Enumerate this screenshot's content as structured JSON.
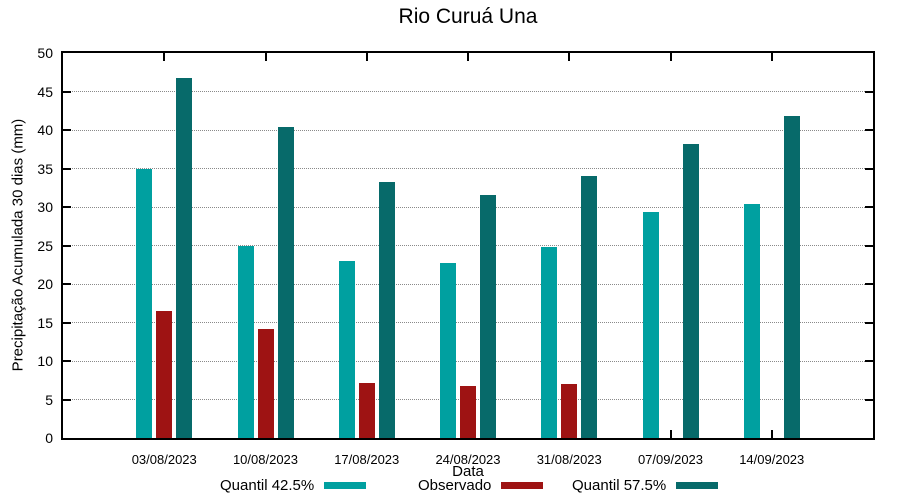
{
  "chart_data": {
    "type": "bar",
    "title": "Rio Curuá Una",
    "xlabel": "Data",
    "ylabel": "Precipitação Acumulada 30 dias (mm)",
    "ylim": [
      0,
      50
    ],
    "ytick_step": 5,
    "yticks": [
      0,
      5,
      10,
      15,
      20,
      25,
      30,
      35,
      40,
      45,
      50
    ],
    "grid": true,
    "grid_style": "dotted",
    "legend_position": "bottom",
    "categories": [
      "03/08/2023",
      "10/08/2023",
      "17/08/2023",
      "24/08/2023",
      "31/08/2023",
      "07/09/2023",
      "14/09/2023"
    ],
    "series": [
      {
        "name": "Quantil 42.5%",
        "color": "#00A0A0",
        "values": [
          34.9,
          25.0,
          23.0,
          22.7,
          24.8,
          29.3,
          30.4
        ]
      },
      {
        "name": "Observado",
        "color": "#9E1313",
        "values": [
          16.5,
          14.2,
          7.2,
          6.8,
          7.0,
          null,
          null
        ]
      },
      {
        "name": "Quantil 57.5%",
        "color": "#076A6A",
        "values": [
          46.8,
          40.4,
          33.3,
          31.5,
          34.0,
          38.2,
          41.8
        ]
      }
    ]
  },
  "colors": {
    "axis": "#000000",
    "grid": "#8a8a8a",
    "background": "#ffffff"
  }
}
